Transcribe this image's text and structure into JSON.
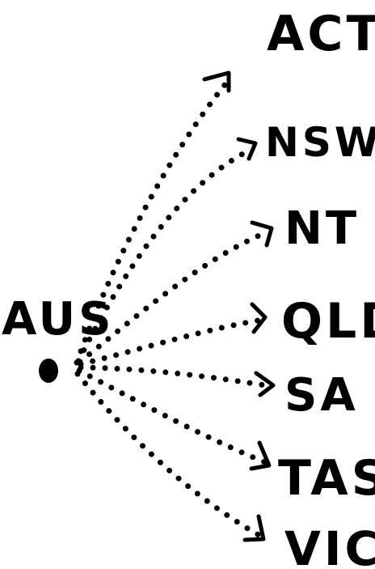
{
  "source": {
    "label": "AUS"
  },
  "targets": [
    {
      "label": "ACT"
    },
    {
      "label": "NSW"
    },
    {
      "label": "NT"
    },
    {
      "label": "QLD"
    },
    {
      "label": "SA"
    },
    {
      "label": "TAS"
    },
    {
      "label": "VIC"
    }
  ],
  "colors": {
    "ink": "#000000",
    "background": "#ffffff"
  }
}
